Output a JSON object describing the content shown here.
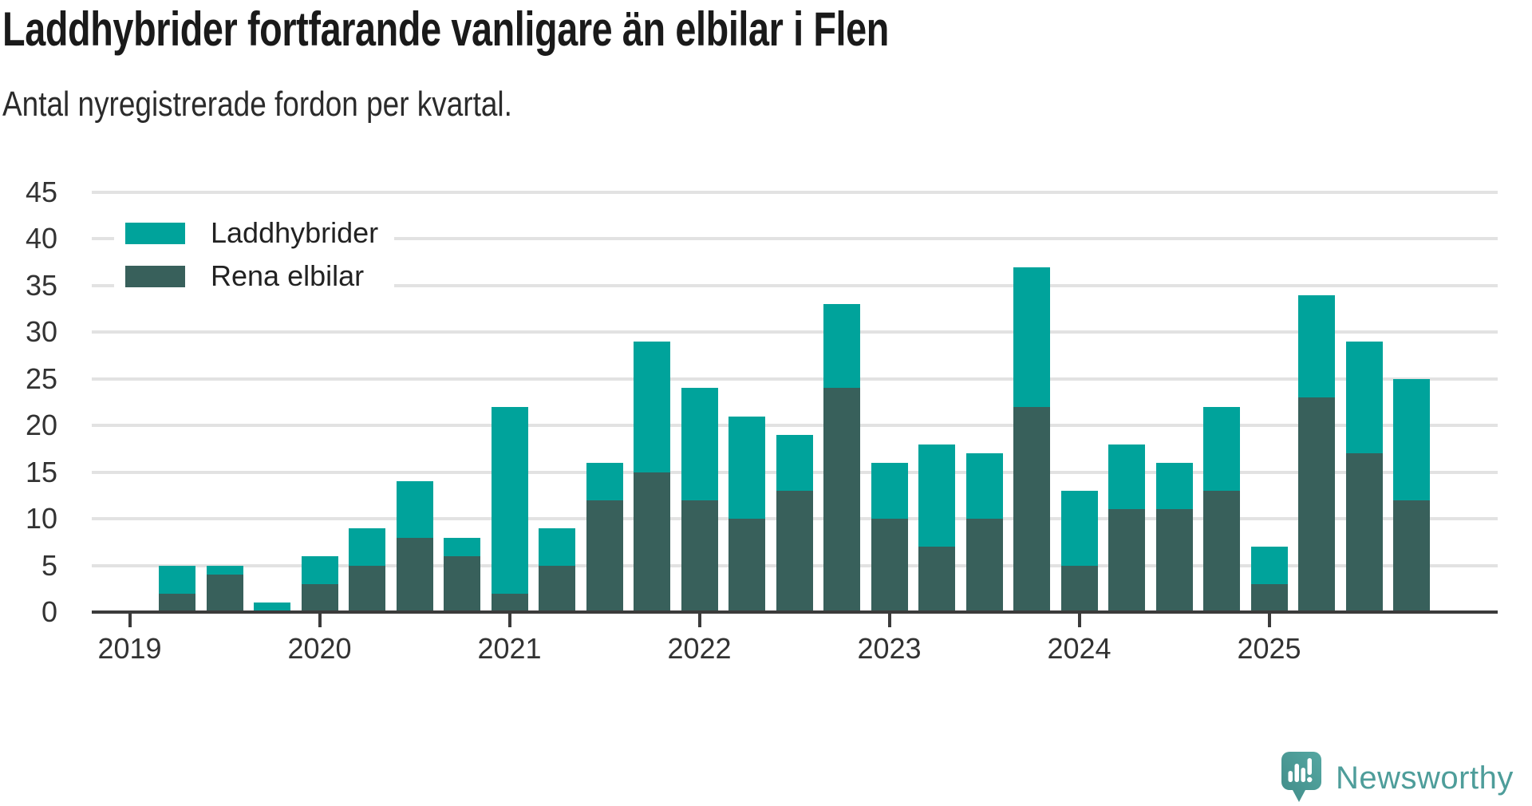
{
  "header": {
    "title": "Laddhybrider fortfarande vanligare än elbilar i Flen",
    "subtitle": "Antal nyregistrerade fordon per kvartal."
  },
  "colors": {
    "laddhybrider": "#00a39b",
    "rena_elbilar": "#38605b",
    "gridline": "#e2e2e2",
    "axis": "#3b3b3b",
    "tick_text": "#333333",
    "title_text": "#1a1a1a",
    "logo_teal": "#4e9d9a"
  },
  "legend": {
    "items": [
      {
        "label": "Laddhybrider",
        "color_key": "laddhybrider"
      },
      {
        "label": "Rena elbilar",
        "color_key": "rena_elbilar"
      }
    ]
  },
  "chart_data": {
    "type": "bar",
    "stacked": true,
    "title": "Laddhybrider fortfarande vanligare än elbilar i Flen",
    "subtitle": "Antal nyregistrerade fordon per kvartal.",
    "categories": [
      "2019 Q1",
      "2019 Q2",
      "2019 Q3",
      "2019 Q4",
      "2020 Q1",
      "2020 Q2",
      "2020 Q3",
      "2020 Q4",
      "2021 Q1",
      "2021 Q2",
      "2021 Q3",
      "2021 Q4",
      "2022 Q1",
      "2022 Q2",
      "2022 Q3",
      "2022 Q4",
      "2023 Q1",
      "2023 Q2",
      "2023 Q3",
      "2023 Q4",
      "2024 Q1",
      "2024 Q2",
      "2024 Q3",
      "2024 Q4",
      "2025 Q1",
      "2025 Q2",
      "2025 Q3",
      "2025 Q4"
    ],
    "series": [
      {
        "name": "Rena elbilar",
        "values": [
          0,
          2,
          4,
          0,
          3,
          5,
          8,
          6,
          2,
          5,
          12,
          15,
          12,
          10,
          13,
          24,
          10,
          7,
          10,
          22,
          5,
          11,
          11,
          13,
          3,
          23,
          17,
          12
        ]
      },
      {
        "name": "Laddhybrider",
        "values": [
          0,
          3,
          1,
          1,
          3,
          4,
          6,
          2,
          20,
          4,
          4,
          14,
          12,
          11,
          6,
          9,
          6,
          11,
          7,
          15,
          8,
          7,
          5,
          9,
          4,
          11,
          12,
          13
        ]
      }
    ],
    "totals": [
      0,
      5,
      5,
      1,
      6,
      9,
      14,
      8,
      22,
      9,
      16,
      29,
      24,
      21,
      19,
      33,
      16,
      18,
      17,
      37,
      13,
      18,
      16,
      22,
      7,
      34,
      29,
      25
    ],
    "ylim": [
      0,
      45
    ],
    "yticks": [
      0,
      5,
      10,
      15,
      20,
      25,
      30,
      35,
      40,
      45
    ],
    "xticks": [
      "2019",
      "2020",
      "2021",
      "2022",
      "2023",
      "2024",
      "2025"
    ],
    "grid": true,
    "legend_position": "top-left"
  },
  "footer": {
    "brand": "Newsworthy"
  }
}
